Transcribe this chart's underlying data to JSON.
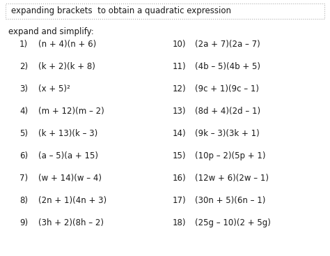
{
  "title": "expanding brackets  to obtain a quadratic expression",
  "subtitle": "expand and simplify:",
  "bg_color": "#ffffff",
  "border_color": "#b0b0b0",
  "text_color": "#1a1a1a",
  "font_size": 8.5,
  "title_font_size": 8.5,
  "left_items": [
    {
      "num": "1)",
      "expr": "(n + 4)(n + 6)"
    },
    {
      "num": "2)",
      "expr": "(k + 2)(k + 8)"
    },
    {
      "num": "3)",
      "expr": "(x + 5)²"
    },
    {
      "num": "4)",
      "expr": "(m + 12)(m – 2)"
    },
    {
      "num": "5)",
      "expr": "(k + 13)(k – 3)"
    },
    {
      "num": "6)",
      "expr": "(a – 5)(a + 15)"
    },
    {
      "num": "7)",
      "expr": "(w + 14)(w – 4)"
    },
    {
      "num": "8)",
      "expr": "(2n + 1)(4n + 3)"
    },
    {
      "num": "9)",
      "expr": "(3h + 2)(8h – 2)"
    }
  ],
  "right_items": [
    {
      "num": "10)",
      "expr": "(2a + 7)(2a – 7)"
    },
    {
      "num": "11)",
      "expr": "(4b – 5)(4b + 5)"
    },
    {
      "num": "12)",
      "expr": "(9c + 1)(9c – 1)"
    },
    {
      "num": "13)",
      "expr": "(8d + 4)(2d – 1)"
    },
    {
      "num": "14)",
      "expr": "(9k – 3)(3k + 1)"
    },
    {
      "num": "15)",
      "expr": "(10p – 2)(5p + 1)"
    },
    {
      "num": "16)",
      "expr": "(12w + 6)(2w – 1)"
    },
    {
      "num": "17)",
      "expr": "(30n + 5)(6n – 1)"
    },
    {
      "num": "18)",
      "expr": "(25g – 10)(2 + 5g)"
    }
  ]
}
